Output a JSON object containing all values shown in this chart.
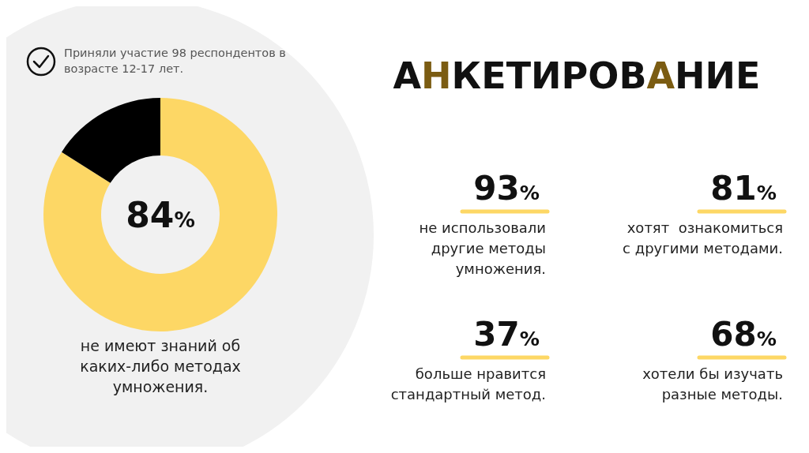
{
  "chart_data": [
    {
      "type": "donut",
      "categories": [
        null,
        null
      ],
      "values": [
        84,
        16
      ],
      "colors": [
        "#fdd765",
        "#000000"
      ],
      "value_labels": [
        "84%",
        null
      ],
      "annotations": [
        "Приняли участие 98 респондентов в возрасте 12-17 лет.",
        "не имеют знаний об каких-либо методах умножения."
      ]
    },
    {
      "type": "other",
      "title": "АНКЕТИРОВАНИЕ",
      "annotations": [
        "93%",
        "не использовали другие методы умножения.",
        "81%",
        "хотят  ознакомиться с другими методами.",
        "37%",
        "больше нравится стандартный метод.",
        "68%",
        "хотели бы изучать разные методы."
      ]
    }
  ]
}
